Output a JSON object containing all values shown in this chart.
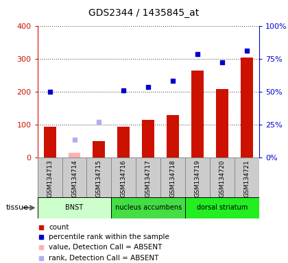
{
  "title": "GDS2344 / 1435845_at",
  "samples": [
    "GSM134713",
    "GSM134714",
    "GSM134715",
    "GSM134716",
    "GSM134717",
    "GSM134718",
    "GSM134719",
    "GSM134720",
    "GSM134721"
  ],
  "bar_values": [
    95,
    null,
    50,
    95,
    115,
    130,
    265,
    210,
    305
  ],
  "bar_absent": [
    null,
    15,
    null,
    null,
    null,
    null,
    null,
    null,
    null
  ],
  "dot_values": [
    200,
    null,
    null,
    205,
    215,
    235,
    315,
    290,
    325
  ],
  "dot_absent": [
    null,
    55,
    110,
    null,
    null,
    null,
    null,
    null,
    null
  ],
  "bar_color": "#cc1100",
  "bar_absent_color": "#ffb0b0",
  "dot_color": "#0000cc",
  "dot_absent_color": "#b0b0ee",
  "ylim": [
    0,
    400
  ],
  "yticks_left": [
    0,
    100,
    200,
    300,
    400
  ],
  "ytick_labels_left": [
    "0",
    "100",
    "200",
    "300",
    "400"
  ],
  "yticks_right": [
    0,
    100,
    200,
    300,
    400
  ],
  "ytick_labels_right": [
    "0%",
    "25%",
    "50%",
    "75%",
    "100%"
  ],
  "tissues": [
    {
      "label": "BNST",
      "start": 0,
      "end": 3,
      "color": "#ccffcc"
    },
    {
      "label": "nucleus accumbens",
      "start": 3,
      "end": 6,
      "color": "#44dd44"
    },
    {
      "label": "dorsal striatum",
      "start": 6,
      "end": 9,
      "color": "#22ee22"
    }
  ],
  "tissue_label": "tissue",
  "legend": [
    {
      "color": "#cc1100",
      "label": "count"
    },
    {
      "color": "#0000cc",
      "label": "percentile rank within the sample"
    },
    {
      "color": "#ffb0b0",
      "label": "value, Detection Call = ABSENT"
    },
    {
      "color": "#b0b0ee",
      "label": "rank, Detection Call = ABSENT"
    }
  ],
  "background_color": "#ffffff",
  "grid_color": "#555555",
  "sample_box_color": "#cccccc",
  "sample_box_edge": "#888888"
}
